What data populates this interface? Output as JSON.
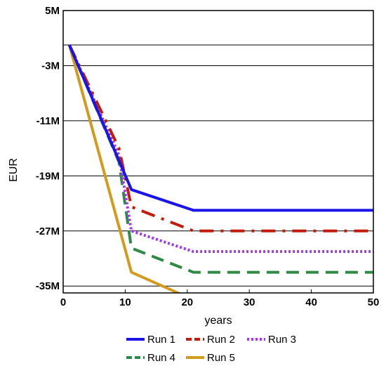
{
  "chart_data": {
    "type": "line",
    "title": "",
    "xlabel": "years",
    "ylabel": "EUR",
    "xlim": [
      0,
      50
    ],
    "ylim": [
      -36,
      5
    ],
    "xticks": [
      0,
      10,
      20,
      30,
      40,
      50
    ],
    "xtick_labels": [
      "0",
      "10",
      "20",
      "30",
      "40",
      "50"
    ],
    "yticks": [
      5,
      -3,
      -11,
      -19,
      -27,
      -35
    ],
    "ytick_labels": [
      "5M",
      "-3M",
      "-11M",
      "-19M",
      "-27M",
      "-35M"
    ],
    "grid": "horizontal",
    "legend_position": "bottom",
    "series": [
      {
        "name": "Run 1",
        "color": "#1a14e8",
        "dash": "solid",
        "x": [
          1,
          11,
          21,
          50
        ],
        "y": [
          0,
          -21,
          -24,
          -24
        ]
      },
      {
        "name": "Run 2",
        "color": "#c21c0e",
        "dash": "dashdot",
        "x": [
          1,
          9,
          11,
          21,
          50
        ],
        "y": [
          0,
          -15,
          -23.5,
          -27,
          -27
        ]
      },
      {
        "name": "Run 3",
        "color": "#a335f0",
        "dash": "dotted",
        "x": [
          1,
          9,
          11,
          21,
          50
        ],
        "y": [
          0,
          -16,
          -27,
          -30,
          -30
        ]
      },
      {
        "name": "Run 4",
        "color": "#2f8a45",
        "dash": "dashed",
        "x": [
          1,
          9,
          11,
          21,
          50
        ],
        "y": [
          0,
          -17,
          -29.5,
          -33,
          -33
        ]
      },
      {
        "name": "Run 5",
        "color": "#d29b1e",
        "dash": "solid",
        "x": [
          1,
          11,
          21,
          50
        ],
        "y": [
          0,
          -33,
          -37,
          -37
        ]
      }
    ]
  }
}
